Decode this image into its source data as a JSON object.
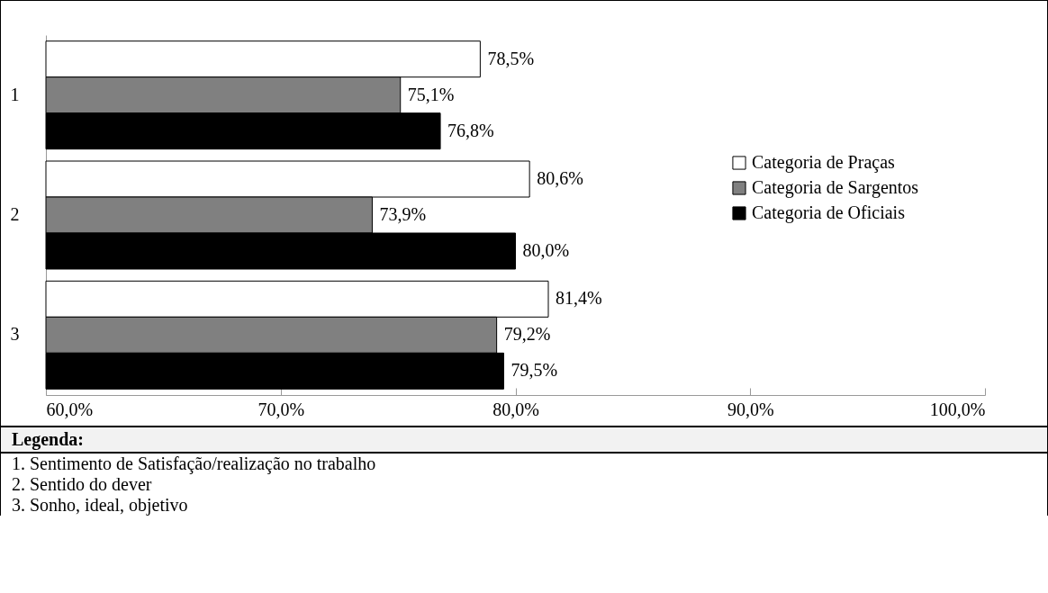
{
  "chart_data": {
    "type": "bar",
    "orientation": "horizontal",
    "categories": [
      "1",
      "2",
      "3"
    ],
    "series": [
      {
        "name": "Categoria de Praças",
        "color": "#ffffff",
        "values": [
          78.5,
          80.6,
          81.4
        ],
        "value_labels": [
          "78,5%",
          "80,6%",
          "81,4%"
        ]
      },
      {
        "name": "Categoria de Sargentos",
        "color": "#808080",
        "values": [
          75.1,
          73.9,
          79.2
        ],
        "value_labels": [
          "75,1%",
          "73,9%",
          "79,2%"
        ]
      },
      {
        "name": "Categoria de Oficiais",
        "color": "#000000",
        "values": [
          76.8,
          80.0,
          79.5
        ],
        "value_labels": [
          "76,8%",
          "80,0%",
          "79,5%"
        ]
      }
    ],
    "xlim": [
      60,
      100
    ],
    "xticks": [
      {
        "value": 60,
        "label": "60,0%"
      },
      {
        "value": 70,
        "label": "70,0%"
      },
      {
        "value": 80,
        "label": "80,0%"
      },
      {
        "value": 90,
        "label": "90,0%"
      },
      {
        "value": 100,
        "label": "100,0%"
      }
    ],
    "legend": "right",
    "grid": false,
    "annotations": [
      "Legenda:",
      "1.\tSentimento de Satisfação/realização no trabalho",
      "2.\tSentido do dever",
      "3.\tSonho, ideal, objetivo"
    ]
  }
}
